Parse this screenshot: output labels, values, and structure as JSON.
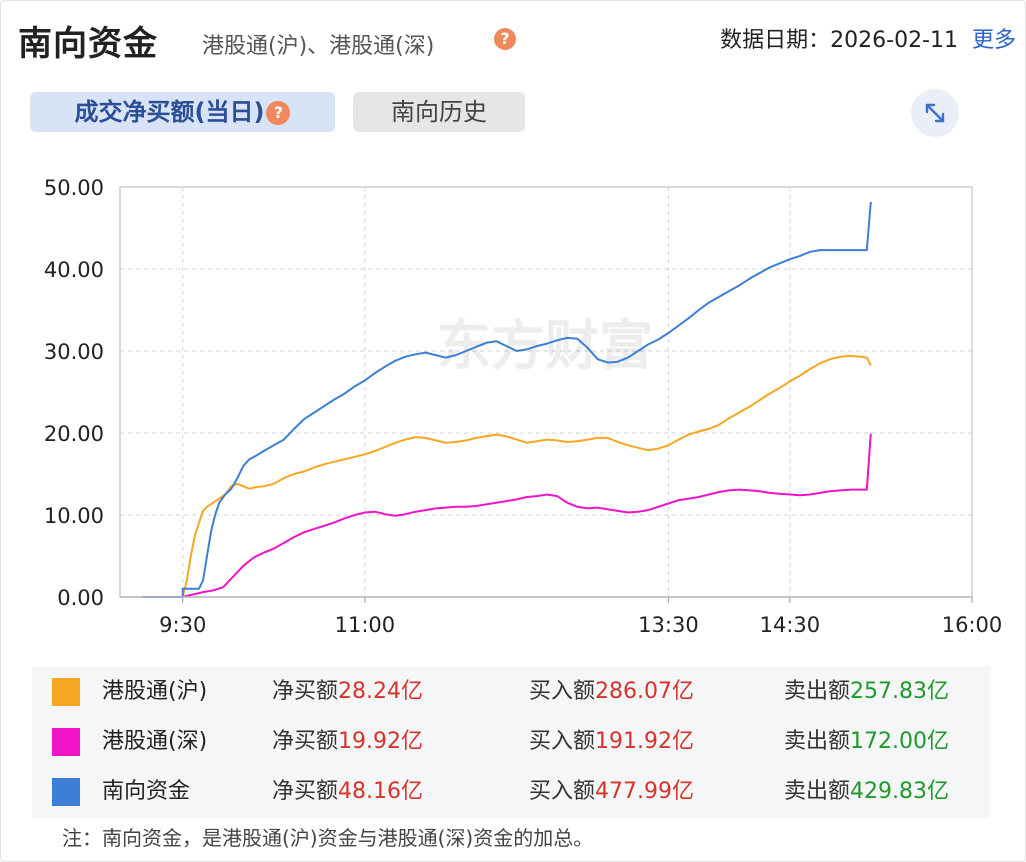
{
  "header": {
    "title": "南向资金",
    "subtitle": "港股通(沪)、港股通(深)",
    "help_glyph": "?",
    "date_label": "数据日期：2026-02-11",
    "more_label": "更多"
  },
  "tabs": [
    {
      "label": "成交净买额(当日)",
      "active": true
    },
    {
      "label": "南向历史",
      "active": false
    }
  ],
  "expand_icon": "expand-arrows-icon",
  "chart_data": {
    "type": "line",
    "x_ticks": [
      "9:30",
      "11:00",
      "13:30",
      "14:30",
      "16:00"
    ],
    "x_tick_minutes": [
      0,
      90,
      240,
      300,
      390
    ],
    "y_ticks": [
      "0.00",
      "10.00",
      "20.00",
      "30.00",
      "40.00",
      "50.00"
    ],
    "ylim": [
      0,
      50
    ],
    "grid": true,
    "watermark": "东方财富",
    "series": [
      {
        "name": "港股通(沪)",
        "color": "#f5a623",
        "points": [
          [
            -20,
            0
          ],
          [
            -10,
            0
          ],
          [
            0,
            0
          ],
          [
            2,
            2
          ],
          [
            4,
            5
          ],
          [
            6,
            7.5
          ],
          [
            8,
            9
          ],
          [
            10,
            10.5
          ],
          [
            12,
            11
          ],
          [
            15,
            11.5
          ],
          [
            18,
            12
          ],
          [
            21,
            12.5
          ],
          [
            24,
            13.5
          ],
          [
            27,
            13.8
          ],
          [
            30,
            13.5
          ],
          [
            33,
            13.2
          ],
          [
            36,
            13.4
          ],
          [
            40,
            13.5
          ],
          [
            45,
            13.8
          ],
          [
            50,
            14.5
          ],
          [
            55,
            15
          ],
          [
            60,
            15.3
          ],
          [
            65,
            15.8
          ],
          [
            70,
            16.2
          ],
          [
            75,
            16.5
          ],
          [
            80,
            16.8
          ],
          [
            85,
            17.1
          ],
          [
            90,
            17.4
          ],
          [
            95,
            17.8
          ],
          [
            100,
            18.3
          ],
          [
            105,
            18.8
          ],
          [
            110,
            19.2
          ],
          [
            115,
            19.5
          ],
          [
            120,
            19.4
          ],
          [
            125,
            19.1
          ],
          [
            130,
            18.8
          ],
          [
            135,
            18.9
          ],
          [
            140,
            19.1
          ],
          [
            145,
            19.4
          ],
          [
            150,
            19.6
          ],
          [
            155,
            19.8
          ],
          [
            160,
            19.6
          ],
          [
            165,
            19.2
          ],
          [
            170,
            18.8
          ],
          [
            175,
            19
          ],
          [
            180,
            19.2
          ],
          [
            185,
            19.1
          ],
          [
            190,
            18.9
          ],
          [
            195,
            19
          ],
          [
            200,
            19.2
          ],
          [
            205,
            19.4
          ],
          [
            210,
            19.4
          ],
          [
            215,
            18.9
          ],
          [
            220,
            18.5
          ],
          [
            225,
            18.2
          ],
          [
            230,
            17.9
          ],
          [
            235,
            18.1
          ],
          [
            240,
            18.5
          ],
          [
            245,
            19.2
          ],
          [
            250,
            19.8
          ],
          [
            255,
            20.2
          ],
          [
            260,
            20.5
          ],
          [
            265,
            21
          ],
          [
            270,
            21.8
          ],
          [
            275,
            22.5
          ],
          [
            280,
            23.2
          ],
          [
            285,
            24
          ],
          [
            290,
            24.8
          ],
          [
            295,
            25.5
          ],
          [
            300,
            26.3
          ],
          [
            305,
            27
          ],
          [
            310,
            27.8
          ],
          [
            315,
            28.5
          ],
          [
            320,
            29
          ],
          [
            325,
            29.3
          ],
          [
            330,
            29.4
          ],
          [
            335,
            29.3
          ],
          [
            338,
            29.2
          ],
          [
            340,
            28.24
          ]
        ]
      },
      {
        "name": "港股通(深)",
        "color": "#f013c8",
        "points": [
          [
            -20,
            0
          ],
          [
            -10,
            0
          ],
          [
            0,
            0
          ],
          [
            5,
            0.3
          ],
          [
            10,
            0.6
          ],
          [
            15,
            0.8
          ],
          [
            20,
            1.2
          ],
          [
            25,
            2.5
          ],
          [
            30,
            3.8
          ],
          [
            35,
            4.8
          ],
          [
            40,
            5.4
          ],
          [
            45,
            5.9
          ],
          [
            50,
            6.6
          ],
          [
            55,
            7.3
          ],
          [
            60,
            7.9
          ],
          [
            65,
            8.3
          ],
          [
            70,
            8.7
          ],
          [
            75,
            9.1
          ],
          [
            80,
            9.6
          ],
          [
            85,
            10
          ],
          [
            90,
            10.3
          ],
          [
            95,
            10.4
          ],
          [
            100,
            10.1
          ],
          [
            105,
            9.9
          ],
          [
            110,
            10.1
          ],
          [
            115,
            10.4
          ],
          [
            120,
            10.6
          ],
          [
            125,
            10.8
          ],
          [
            130,
            10.9
          ],
          [
            135,
            11
          ],
          [
            140,
            11
          ],
          [
            145,
            11.1
          ],
          [
            150,
            11.3
          ],
          [
            155,
            11.5
          ],
          [
            160,
            11.7
          ],
          [
            165,
            11.9
          ],
          [
            170,
            12.2
          ],
          [
            175,
            12.3
          ],
          [
            180,
            12.5
          ],
          [
            185,
            12.3
          ],
          [
            190,
            11.5
          ],
          [
            195,
            11
          ],
          [
            200,
            10.8
          ],
          [
            205,
            10.9
          ],
          [
            210,
            10.7
          ],
          [
            215,
            10.5
          ],
          [
            220,
            10.3
          ],
          [
            225,
            10.4
          ],
          [
            230,
            10.6
          ],
          [
            235,
            11
          ],
          [
            240,
            11.4
          ],
          [
            245,
            11.8
          ],
          [
            250,
            12
          ],
          [
            255,
            12.2
          ],
          [
            260,
            12.5
          ],
          [
            265,
            12.8
          ],
          [
            270,
            13
          ],
          [
            275,
            13.1
          ],
          [
            280,
            13
          ],
          [
            285,
            12.9
          ],
          [
            290,
            12.7
          ],
          [
            295,
            12.6
          ],
          [
            300,
            12.5
          ],
          [
            305,
            12.4
          ],
          [
            310,
            12.5
          ],
          [
            315,
            12.7
          ],
          [
            320,
            12.9
          ],
          [
            325,
            13.0
          ],
          [
            330,
            13.1
          ],
          [
            335,
            13.1
          ],
          [
            338,
            13.1
          ],
          [
            340,
            19.92
          ]
        ]
      },
      {
        "name": "南向资金",
        "color": "#3d7fd6",
        "points": [
          [
            -20,
            0
          ],
          [
            -10,
            0
          ],
          [
            0,
            0
          ],
          [
            0,
            1
          ],
          [
            8,
            1
          ],
          [
            10,
            2
          ],
          [
            12,
            5
          ],
          [
            14,
            8
          ],
          [
            16,
            10
          ],
          [
            18,
            11.5
          ],
          [
            21,
            12.5
          ],
          [
            24,
            13.2
          ],
          [
            27,
            14.5
          ],
          [
            30,
            16
          ],
          [
            33,
            16.8
          ],
          [
            36,
            17.2
          ],
          [
            40,
            17.8
          ],
          [
            45,
            18.5
          ],
          [
            50,
            19.2
          ],
          [
            55,
            20.5
          ],
          [
            60,
            21.7
          ],
          [
            65,
            22.5
          ],
          [
            70,
            23.3
          ],
          [
            75,
            24.1
          ],
          [
            80,
            24.8
          ],
          [
            85,
            25.7
          ],
          [
            90,
            26.4
          ],
          [
            95,
            27.3
          ],
          [
            100,
            28.1
          ],
          [
            105,
            28.8
          ],
          [
            110,
            29.3
          ],
          [
            115,
            29.6
          ],
          [
            120,
            29.8
          ],
          [
            125,
            29.5
          ],
          [
            130,
            29.2
          ],
          [
            135,
            29.5
          ],
          [
            140,
            30
          ],
          [
            145,
            30.5
          ],
          [
            150,
            31
          ],
          [
            155,
            31.2
          ],
          [
            160,
            30.6
          ],
          [
            165,
            30
          ],
          [
            170,
            30.2
          ],
          [
            175,
            30.6
          ],
          [
            180,
            30.9
          ],
          [
            185,
            31.3
          ],
          [
            190,
            31.6
          ],
          [
            195,
            31.5
          ],
          [
            200,
            30.4
          ],
          [
            205,
            29
          ],
          [
            210,
            28.6
          ],
          [
            215,
            28.7
          ],
          [
            220,
            29.2
          ],
          [
            225,
            30
          ],
          [
            230,
            30.8
          ],
          [
            235,
            31.4
          ],
          [
            240,
            32.2
          ],
          [
            245,
            33.1
          ],
          [
            250,
            34
          ],
          [
            255,
            35
          ],
          [
            260,
            35.9
          ],
          [
            265,
            36.6
          ],
          [
            270,
            37.3
          ],
          [
            275,
            38
          ],
          [
            280,
            38.8
          ],
          [
            285,
            39.5
          ],
          [
            290,
            40.2
          ],
          [
            295,
            40.7
          ],
          [
            300,
            41.2
          ],
          [
            305,
            41.6
          ],
          [
            310,
            42.1
          ],
          [
            315,
            42.3
          ],
          [
            318,
            42.3
          ],
          [
            320,
            42.3
          ],
          [
            325,
            42.3
          ],
          [
            330,
            42.3
          ],
          [
            335,
            42.3
          ],
          [
            338,
            42.3
          ],
          [
            340,
            48.16
          ]
        ]
      }
    ]
  },
  "legend": [
    {
      "name": "港股通(沪)",
      "color": "#f5a623",
      "net_label": "净买额",
      "net": "28.24亿",
      "buy_label": "买入额",
      "buy": "286.07亿",
      "sell_label": "卖出额",
      "sell": "257.83亿"
    },
    {
      "name": "港股通(深)",
      "color": "#f013c8",
      "net_label": "净买额",
      "net": "19.92亿",
      "buy_label": "买入额",
      "buy": "191.92亿",
      "sell_label": "卖出额",
      "sell": "172.00亿"
    },
    {
      "name": "南向资金",
      "color": "#3d7fd6",
      "net_label": "净买额",
      "net": "48.16亿",
      "buy_label": "买入额",
      "buy": "477.99亿",
      "sell_label": "卖出额",
      "sell": "429.83亿"
    }
  ],
  "note": "注：南向资金，是港股通(沪)资金与港股通(深)资金的加总。"
}
